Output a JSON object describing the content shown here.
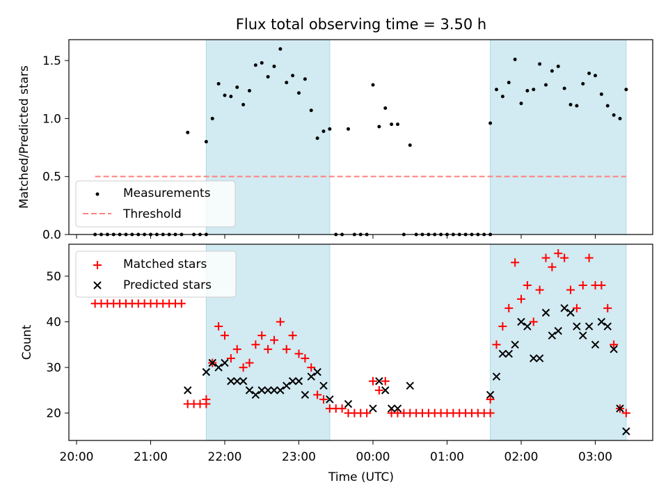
{
  "title": "Flux total observing time = 3.50 h",
  "colors": {
    "measurement": "#000000",
    "threshold": "#ff7f7f",
    "matched": "#ff0000",
    "predicted": "#000000",
    "shade": "#add8e6"
  },
  "chart_data": [
    {
      "type": "scatter",
      "ylabel": "Matched/Predicted stars",
      "xlabel": "",
      "ylim": [
        0,
        1.68
      ],
      "yticks": [
        "0.0",
        "0.5",
        "1.0",
        "1.5"
      ],
      "legend": {
        "placement": "lower-left",
        "entries": [
          "Measurements",
          "Threshold"
        ]
      },
      "shaded_intervals": [
        [
          "21:45",
          "23:25"
        ],
        [
          "01:35",
          "03:25"
        ]
      ],
      "threshold": {
        "name": "Threshold",
        "value": 0.5,
        "x_range": [
          "20:15",
          "03:25"
        ]
      },
      "series": [
        {
          "name": "Measurements",
          "points": [
            [
              "20:15",
              0
            ],
            [
              "20:20",
              0
            ],
            [
              "20:25",
              0
            ],
            [
              "20:30",
              0
            ],
            [
              "20:35",
              0
            ],
            [
              "20:40",
              0
            ],
            [
              "20:45",
              0
            ],
            [
              "20:50",
              0
            ],
            [
              "20:55",
              0
            ],
            [
              "21:00",
              0
            ],
            [
              "21:05",
              0
            ],
            [
              "21:10",
              0
            ],
            [
              "21:15",
              0
            ],
            [
              "21:20",
              0
            ],
            [
              "21:25",
              0
            ],
            [
              "21:30",
              0.88
            ],
            [
              "21:35",
              0
            ],
            [
              "21:40",
              0
            ],
            [
              "21:45",
              0
            ],
            [
              "21:45",
              0.8
            ],
            [
              "21:50",
              1.0
            ],
            [
              "21:55",
              1.3
            ],
            [
              "22:00",
              1.2
            ],
            [
              "22:05",
              1.19
            ],
            [
              "22:10",
              1.27
            ],
            [
              "22:15",
              1.12
            ],
            [
              "22:20",
              1.24
            ],
            [
              "22:25",
              1.46
            ],
            [
              "22:30",
              1.48
            ],
            [
              "22:35",
              1.36
            ],
            [
              "22:40",
              1.45
            ],
            [
              "22:45",
              1.6
            ],
            [
              "22:50",
              1.31
            ],
            [
              "22:55",
              1.37
            ],
            [
              "23:00",
              1.22
            ],
            [
              "23:05",
              1.34
            ],
            [
              "23:10",
              1.07
            ],
            [
              "23:15",
              0.83
            ],
            [
              "23:20",
              0.89
            ],
            [
              "23:25",
              0.91
            ],
            [
              "23:30",
              0
            ],
            [
              "23:35",
              0
            ],
            [
              "23:40",
              0.91
            ],
            [
              "23:45",
              0
            ],
            [
              "23:50",
              0
            ],
            [
              "23:55",
              0
            ],
            [
              "00:00",
              1.29
            ],
            [
              "00:05",
              0.93
            ],
            [
              "00:10",
              1.09
            ],
            [
              "00:15",
              0.95
            ],
            [
              "00:20",
              0.95
            ],
            [
              "00:25",
              0
            ],
            [
              "00:30",
              0.77
            ],
            [
              "00:35",
              0
            ],
            [
              "00:40",
              0
            ],
            [
              "00:45",
              0
            ],
            [
              "00:50",
              0
            ],
            [
              "00:55",
              0
            ],
            [
              "01:00",
              0
            ],
            [
              "01:05",
              0
            ],
            [
              "01:10",
              0
            ],
            [
              "01:15",
              0
            ],
            [
              "01:20",
              0
            ],
            [
              "01:25",
              0
            ],
            [
              "01:30",
              0
            ],
            [
              "01:35",
              0
            ],
            [
              "01:35",
              0.96
            ],
            [
              "01:40",
              1.25
            ],
            [
              "01:45",
              1.19
            ],
            [
              "01:50",
              1.31
            ],
            [
              "01:55",
              1.51
            ],
            [
              "02:00",
              1.13
            ],
            [
              "02:05",
              1.24
            ],
            [
              "02:10",
              1.25
            ],
            [
              "02:15",
              1.47
            ],
            [
              "02:20",
              1.29
            ],
            [
              "02:25",
              1.41
            ],
            [
              "02:30",
              1.45
            ],
            [
              "02:35",
              1.26
            ],
            [
              "02:40",
              1.12
            ],
            [
              "02:45",
              1.11
            ],
            [
              "02:50",
              1.3
            ],
            [
              "02:55",
              1.39
            ],
            [
              "03:00",
              1.37
            ],
            [
              "03:05",
              1.21
            ],
            [
              "03:10",
              1.11
            ],
            [
              "03:15",
              1.03
            ],
            [
              "03:20",
              1.0
            ],
            [
              "03:25",
              1.25
            ]
          ]
        }
      ]
    },
    {
      "type": "scatter",
      "ylabel": "Count",
      "xlabel": "Time (UTC)",
      "ylim": [
        14,
        57
      ],
      "yticks": [
        "20",
        "30",
        "40",
        "50"
      ],
      "xticks": [
        "20:00",
        "21:00",
        "22:00",
        "23:00",
        "00:00",
        "01:00",
        "02:00",
        "03:00"
      ],
      "legend": {
        "placement": "upper-left",
        "entries": [
          "Matched stars",
          "Predicted stars"
        ]
      },
      "shaded_intervals": [
        [
          "21:45",
          "23:25"
        ],
        [
          "01:35",
          "03:25"
        ]
      ],
      "series": [
        {
          "name": "Matched stars",
          "points": [
            [
              "20:15",
              44
            ],
            [
              "20:20",
              44
            ],
            [
              "20:25",
              44
            ],
            [
              "20:30",
              44
            ],
            [
              "20:35",
              44
            ],
            [
              "20:40",
              44
            ],
            [
              "20:45",
              44
            ],
            [
              "20:50",
              44
            ],
            [
              "20:55",
              44
            ],
            [
              "21:00",
              44
            ],
            [
              "21:05",
              44
            ],
            [
              "21:10",
              44
            ],
            [
              "21:15",
              44
            ],
            [
              "21:20",
              44
            ],
            [
              "21:25",
              44
            ],
            [
              "21:30",
              22
            ],
            [
              "21:35",
              22
            ],
            [
              "21:40",
              22
            ],
            [
              "21:45",
              22
            ],
            [
              "21:45",
              23
            ],
            [
              "21:50",
              31
            ],
            [
              "21:55",
              39
            ],
            [
              "22:00",
              37
            ],
            [
              "22:05",
              32
            ],
            [
              "22:10",
              34
            ],
            [
              "22:15",
              30
            ],
            [
              "22:20",
              31
            ],
            [
              "22:25",
              35
            ],
            [
              "22:30",
              37
            ],
            [
              "22:35",
              34
            ],
            [
              "22:40",
              36
            ],
            [
              "22:45",
              40
            ],
            [
              "22:50",
              34
            ],
            [
              "22:55",
              37
            ],
            [
              "23:00",
              33
            ],
            [
              "23:05",
              32
            ],
            [
              "23:10",
              30
            ],
            [
              "23:15",
              24
            ],
            [
              "23:20",
              23
            ],
            [
              "23:25",
              21
            ],
            [
              "23:30",
              21
            ],
            [
              "23:35",
              21
            ],
            [
              "23:40",
              20
            ],
            [
              "23:45",
              20
            ],
            [
              "23:50",
              20
            ],
            [
              "23:55",
              20
            ],
            [
              "00:00",
              27
            ],
            [
              "00:05",
              25
            ],
            [
              "00:10",
              27
            ],
            [
              "00:15",
              20
            ],
            [
              "00:20",
              20
            ],
            [
              "00:25",
              20
            ],
            [
              "00:30",
              20
            ],
            [
              "00:35",
              20
            ],
            [
              "00:40",
              20
            ],
            [
              "00:45",
              20
            ],
            [
              "00:50",
              20
            ],
            [
              "00:55",
              20
            ],
            [
              "01:00",
              20
            ],
            [
              "01:05",
              20
            ],
            [
              "01:10",
              20
            ],
            [
              "01:15",
              20
            ],
            [
              "01:20",
              20
            ],
            [
              "01:25",
              20
            ],
            [
              "01:30",
              20
            ],
            [
              "01:35",
              20
            ],
            [
              "01:35",
              23
            ],
            [
              "01:40",
              35
            ],
            [
              "01:45",
              39
            ],
            [
              "01:50",
              43
            ],
            [
              "01:55",
              53
            ],
            [
              "02:00",
              45
            ],
            [
              "02:05",
              48
            ],
            [
              "02:10",
              40
            ],
            [
              "02:15",
              47
            ],
            [
              "02:20",
              54
            ],
            [
              "02:25",
              52
            ],
            [
              "02:30",
              55
            ],
            [
              "02:35",
              54
            ],
            [
              "02:40",
              47
            ],
            [
              "02:45",
              43
            ],
            [
              "02:50",
              48
            ],
            [
              "02:55",
              54
            ],
            [
              "03:00",
              48
            ],
            [
              "03:05",
              48
            ],
            [
              "03:10",
              43
            ],
            [
              "03:15",
              35
            ],
            [
              "03:20",
              21
            ],
            [
              "03:25",
              20
            ]
          ]
        },
        {
          "name": "Predicted stars",
          "points": [
            [
              "21:30",
              25
            ],
            [
              "21:45",
              29
            ],
            [
              "21:50",
              31
            ],
            [
              "21:55",
              30
            ],
            [
              "22:00",
              31
            ],
            [
              "22:05",
              27
            ],
            [
              "22:10",
              27
            ],
            [
              "22:15",
              27
            ],
            [
              "22:20",
              25
            ],
            [
              "22:25",
              24
            ],
            [
              "22:30",
              25
            ],
            [
              "22:35",
              25
            ],
            [
              "22:40",
              25
            ],
            [
              "22:45",
              25
            ],
            [
              "22:50",
              26
            ],
            [
              "22:55",
              27
            ],
            [
              "23:00",
              27
            ],
            [
              "23:05",
              24
            ],
            [
              "23:10",
              28
            ],
            [
              "23:15",
              29
            ],
            [
              "23:20",
              26
            ],
            [
              "23:25",
              23
            ],
            [
              "23:40",
              22
            ],
            [
              "00:00",
              21
            ],
            [
              "00:05",
              27
            ],
            [
              "00:10",
              25
            ],
            [
              "00:15",
              21
            ],
            [
              "00:20",
              21
            ],
            [
              "00:30",
              26
            ],
            [
              "01:35",
              24
            ],
            [
              "01:40",
              28
            ],
            [
              "01:45",
              33
            ],
            [
              "01:50",
              33
            ],
            [
              "01:55",
              35
            ],
            [
              "02:00",
              40
            ],
            [
              "02:05",
              39
            ],
            [
              "02:10",
              32
            ],
            [
              "02:15",
              32
            ],
            [
              "02:20",
              42
            ],
            [
              "02:25",
              37
            ],
            [
              "02:30",
              38
            ],
            [
              "02:35",
              43
            ],
            [
              "02:40",
              42
            ],
            [
              "02:45",
              39
            ],
            [
              "02:50",
              37
            ],
            [
              "02:55",
              39
            ],
            [
              "03:00",
              35
            ],
            [
              "03:05",
              40
            ],
            [
              "03:10",
              39
            ],
            [
              "03:15",
              34
            ],
            [
              "03:20",
              21
            ],
            [
              "03:25",
              16
            ]
          ]
        }
      ]
    }
  ]
}
